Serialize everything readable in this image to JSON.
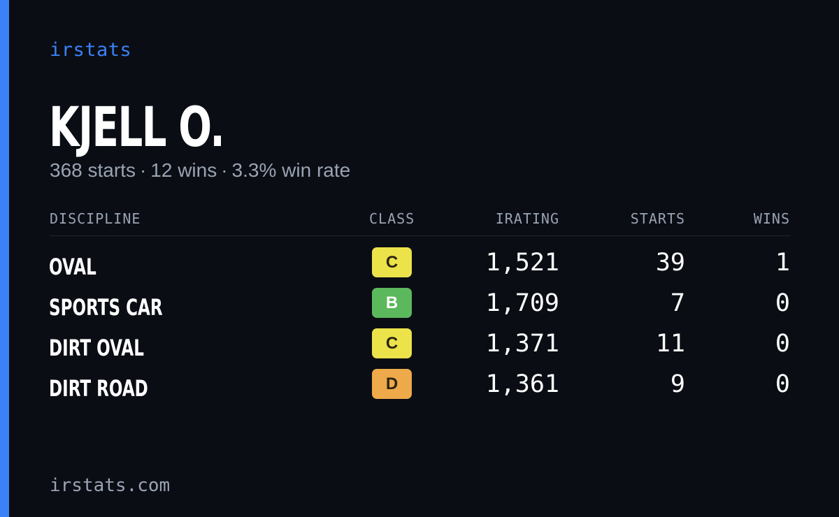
{
  "brand": "irstats",
  "player": {
    "name": "KJELL O.",
    "starts_text": "368 starts",
    "wins_text": "12 wins",
    "winrate_text": "3.3% win rate",
    "separator": "·"
  },
  "table": {
    "headers": {
      "discipline": "DISCIPLINE",
      "class": "CLASS",
      "irating": "IRATING",
      "starts": "STARTS",
      "wins": "WINS"
    },
    "rows": [
      {
        "discipline": "OVAL",
        "class": "C",
        "class_color": "#ece24a",
        "irating": "1,521",
        "starts": "39",
        "wins": "1"
      },
      {
        "discipline": "SPORTS CAR",
        "class": "B",
        "class_color": "#5cb85c",
        "irating": "1,709",
        "starts": "7",
        "wins": "0"
      },
      {
        "discipline": "DIRT OVAL",
        "class": "C",
        "class_color": "#ece24a",
        "irating": "1,371",
        "starts": "11",
        "wins": "0"
      },
      {
        "discipline": "DIRT ROAD",
        "class": "D",
        "class_color": "#eda94a",
        "irating": "1,361",
        "starts": "9",
        "wins": "0"
      }
    ]
  },
  "footer": "irstats.com",
  "colors": {
    "accent": "#3b82f6",
    "background": "#0a0d14",
    "muted": "#9aa3b2"
  }
}
